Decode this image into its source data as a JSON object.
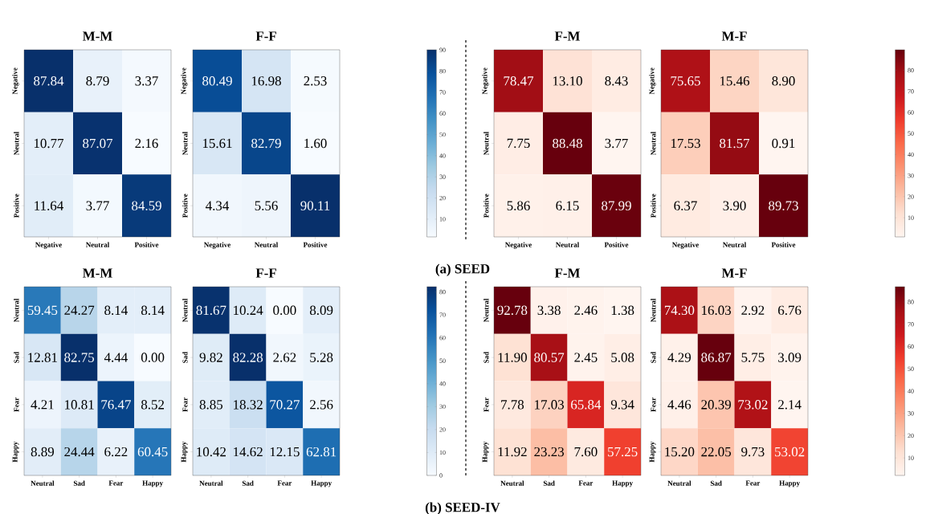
{
  "chart_data": [
    {
      "type": "heatmap",
      "title": "M-M",
      "annotations": [
        "(a) SEED"
      ],
      "categories": [
        "Negative",
        "Neutral",
        "Positive"
      ],
      "y_categories": [
        "Negative",
        "Neutral",
        "Positive"
      ],
      "cells": [
        [
          87.84,
          8.79,
          3.37
        ],
        [
          10.77,
          87.07,
          2.16
        ],
        [
          11.64,
          3.77,
          84.59
        ]
      ],
      "cell_labels": [
        [
          "87.84",
          "8.79",
          "3.37"
        ],
        [
          "10.77",
          "87.07",
          "2.16"
        ],
        [
          "11.64",
          "3.77",
          "84.59"
        ]
      ]
    },
    {
      "type": "heatmap",
      "title": "F-F",
      "categories": [
        "Negative",
        "Neutral",
        "Positive"
      ],
      "y_categories": [
        "Negative",
        "Neutral",
        "Positive"
      ],
      "cells": [
        [
          80.49,
          16.98,
          2.53
        ],
        [
          15.61,
          82.79,
          1.6
        ],
        [
          4.34,
          5.56,
          90.11
        ]
      ],
      "cell_labels": [
        [
          "80.49",
          "16.98",
          "2.53"
        ],
        [
          "15.61",
          "82.79",
          "1.60"
        ],
        [
          "4.34",
          "5.56",
          "90.11"
        ]
      ],
      "clim": [
        1.6,
        90.11
      ],
      "cticks": [
        10,
        20,
        30,
        40,
        50,
        60,
        70,
        80,
        90
      ]
    },
    {
      "type": "heatmap",
      "title": "F-M",
      "categories": [
        "Negative",
        "Neutral",
        "Positive"
      ],
      "y_categories": [
        "Negative",
        "Neutral",
        "Positive"
      ],
      "cells": [
        [
          78.47,
          13.1,
          8.43
        ],
        [
          7.75,
          88.48,
          3.77
        ],
        [
          5.86,
          6.15,
          87.99
        ]
      ],
      "cell_labels": [
        [
          "78.47",
          "13.10",
          "8.43"
        ],
        [
          "7.75",
          "88.48",
          "3.77"
        ],
        [
          "5.86",
          "6.15",
          "87.99"
        ]
      ]
    },
    {
      "type": "heatmap",
      "title": "M-F",
      "categories": [
        "Negative",
        "Neutral",
        "Positive"
      ],
      "y_categories": [
        "Negative",
        "Neutral",
        "Positive"
      ],
      "cells": [
        [
          75.65,
          15.46,
          8.9
        ],
        [
          17.53,
          81.57,
          0.91
        ],
        [
          6.37,
          3.9,
          89.73
        ]
      ],
      "cell_labels": [
        [
          "75.65",
          "15.46",
          "8.90"
        ],
        [
          "17.53",
          "81.57",
          "0.91"
        ],
        [
          "6.37",
          "3.90",
          "89.73"
        ]
      ],
      "clim": [
        0.91,
        89.73
      ],
      "cticks": [
        10,
        20,
        30,
        40,
        50,
        60,
        70,
        80
      ]
    },
    {
      "type": "heatmap",
      "title": "M-M",
      "annotations": [
        "(b) SEED-IV"
      ],
      "categories": [
        "Neutral",
        "Sad",
        "Fear",
        "Happy"
      ],
      "y_categories": [
        "Neutral",
        "Sad",
        "Fear",
        "Happy"
      ],
      "cells": [
        [
          59.45,
          24.27,
          8.14,
          8.14
        ],
        [
          12.81,
          82.75,
          4.44,
          0.0
        ],
        [
          4.21,
          10.81,
          76.47,
          8.52
        ],
        [
          8.89,
          24.44,
          6.22,
          60.45
        ]
      ],
      "cell_labels": [
        [
          "59.45",
          "24.27",
          "8.14",
          "8.14"
        ],
        [
          "12.81",
          "82.75",
          "4.44",
          "0.00"
        ],
        [
          "4.21",
          "10.81",
          "76.47",
          "8.52"
        ],
        [
          "8.89",
          "24.44",
          "6.22",
          "60.45"
        ]
      ]
    },
    {
      "type": "heatmap",
      "title": "F-F",
      "categories": [
        "Neutral",
        "Sad",
        "Fear",
        "Happy"
      ],
      "y_categories": [
        "Neutral",
        "Sad",
        "Fear",
        "Happy"
      ],
      "cells": [
        [
          81.67,
          10.24,
          0.0,
          8.09
        ],
        [
          9.82,
          82.28,
          2.62,
          5.28
        ],
        [
          8.85,
          18.32,
          70.27,
          2.56
        ],
        [
          10.42,
          14.62,
          12.15,
          62.81
        ]
      ],
      "cell_labels": [
        [
          "81.67",
          "10.24",
          "0.00",
          "8.09"
        ],
        [
          "9.82",
          "82.28",
          "2.62",
          "5.28"
        ],
        [
          "8.85",
          "18.32",
          "70.27",
          "2.56"
        ],
        [
          "10.42",
          "14.62",
          "12.15",
          "62.81"
        ]
      ],
      "clim": [
        0,
        82.28
      ],
      "cticks": [
        0,
        10,
        20,
        30,
        40,
        50,
        60,
        70,
        80
      ]
    },
    {
      "type": "heatmap",
      "title": "F-M",
      "categories": [
        "Neutral",
        "Sad",
        "Fear",
        "Happy"
      ],
      "y_categories": [
        "Neutral",
        "Sad",
        "Fear",
        "Happy"
      ],
      "cells": [
        [
          92.78,
          3.38,
          2.46,
          1.38
        ],
        [
          11.9,
          80.57,
          2.45,
          5.08
        ],
        [
          7.78,
          17.03,
          65.84,
          9.34
        ],
        [
          11.92,
          23.23,
          7.6,
          57.25
        ]
      ],
      "cell_labels": [
        [
          "92.78",
          "3.38",
          "2.46",
          "1.38"
        ],
        [
          "11.90",
          "80.57",
          "2.45",
          "5.08"
        ],
        [
          "7.78",
          "17.03",
          "65.84",
          "9.34"
        ],
        [
          "11.92",
          "23.23",
          "7.60",
          "57.25"
        ]
      ]
    },
    {
      "type": "heatmap",
      "title": "M-F",
      "categories": [
        "Neutral",
        "Sad",
        "Fear",
        "Happy"
      ],
      "y_categories": [
        "Neutral",
        "Sad",
        "Fear",
        "Happy"
      ],
      "cells": [
        [
          74.3,
          16.03,
          2.92,
          6.76
        ],
        [
          4.29,
          86.87,
          5.75,
          3.09
        ],
        [
          4.46,
          20.39,
          73.02,
          2.14
        ],
        [
          15.2,
          22.05,
          9.73,
          53.02
        ]
      ],
      "cell_labels": [
        [
          "74.30",
          "16.03",
          "2.92",
          "6.76"
        ],
        [
          "4.29",
          "86.87",
          "5.75",
          "3.09"
        ],
        [
          "4.46",
          "20.39",
          "73.02",
          "2.14"
        ],
        [
          "15.20",
          "22.05",
          "9.73",
          "53.02"
        ]
      ],
      "clim": [
        2.14,
        86.87
      ],
      "cticks": [
        10,
        20,
        30,
        40,
        50,
        60,
        70,
        80
      ]
    }
  ]
}
